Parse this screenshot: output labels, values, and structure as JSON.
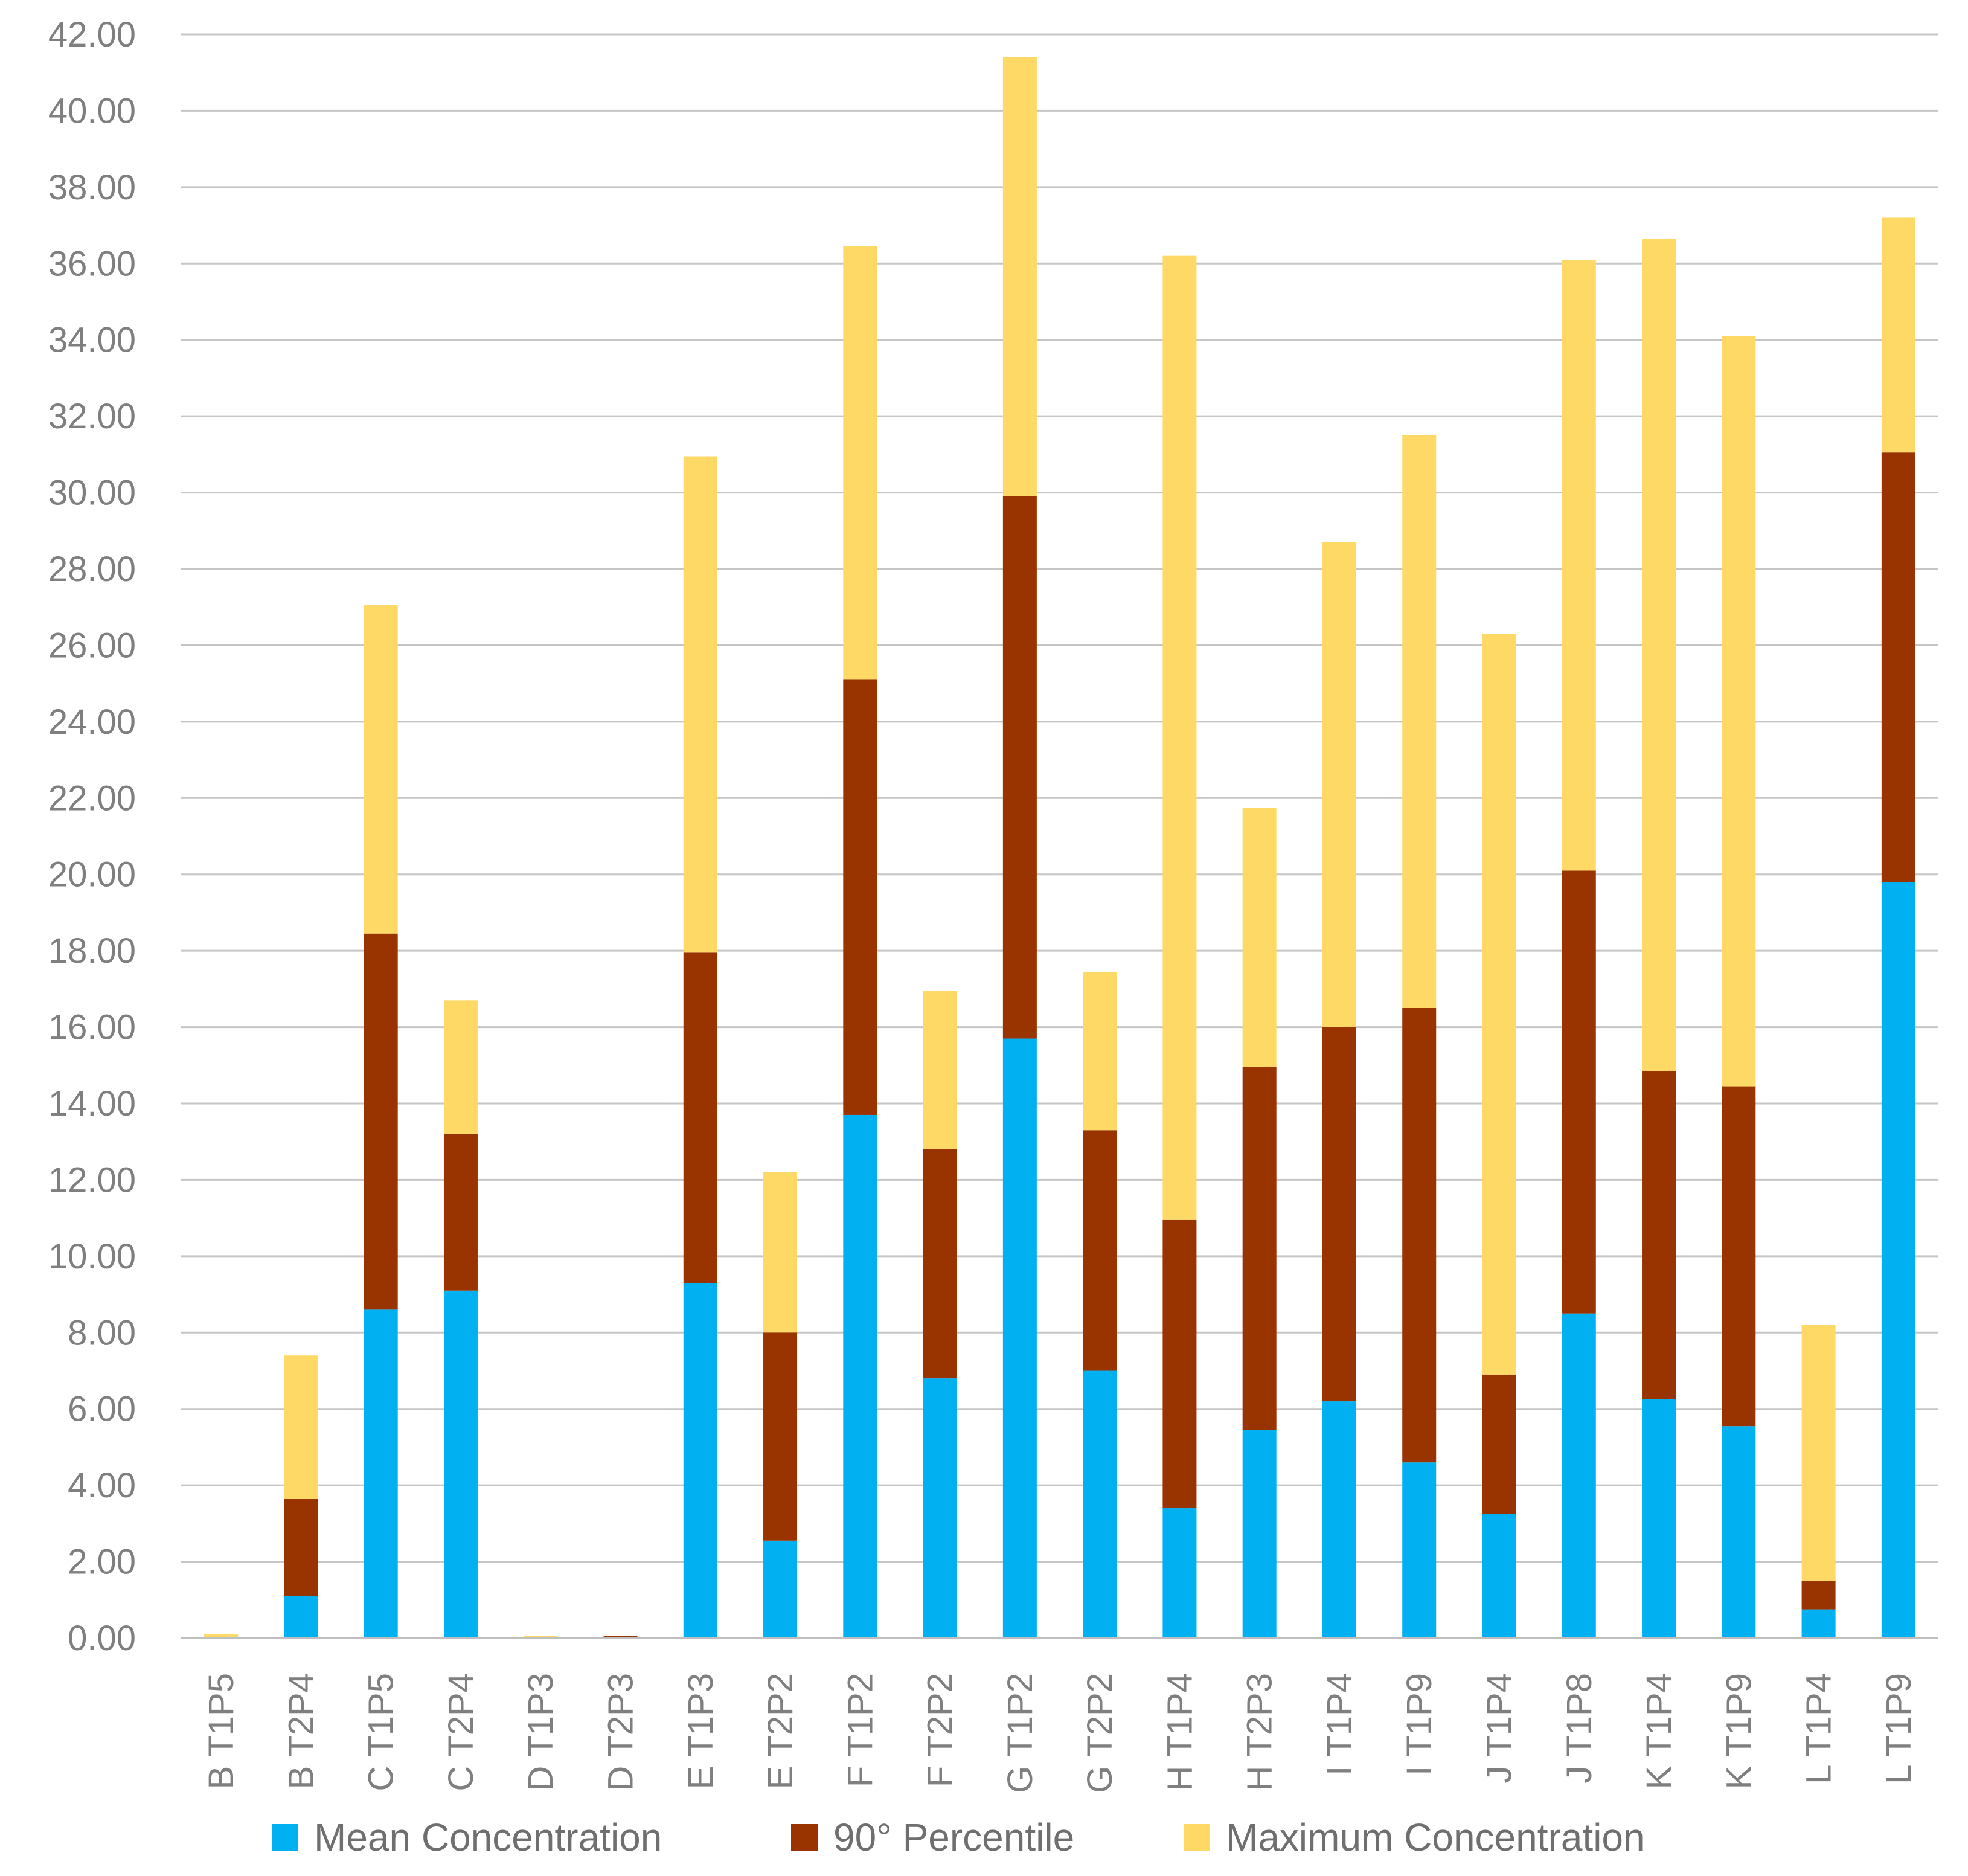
{
  "chart_data": {
    "type": "bar",
    "stacked": true,
    "title": "",
    "xlabel": "",
    "ylabel": "",
    "ylim": [
      0,
      42
    ],
    "y_ticks": [
      "0.00",
      "2.00",
      "4.00",
      "6.00",
      "8.00",
      "10.00",
      "12.00",
      "14.00",
      "16.00",
      "18.00",
      "20.00",
      "22.00",
      "24.00",
      "26.00",
      "28.00",
      "30.00",
      "32.00",
      "34.00",
      "36.00",
      "38.00",
      "40.00",
      "42.00"
    ],
    "grid": true,
    "legend_position": "bottom",
    "categories": [
      "B T1P5",
      "B T2P4",
      "C T1P5",
      "C T2P4",
      "D T1P3",
      "D T2P3",
      "E T1P3",
      "E T2P2",
      "F T1P2",
      "F T2P2",
      "G T1P2",
      "G T2P2",
      "H T1P4",
      "H T2P3",
      "I T1P4",
      "I T1P9",
      "J T1P4",
      "J T1P8",
      "K T1P4",
      "K T1P9",
      "L T1P4",
      "L T1P9"
    ],
    "series": [
      {
        "name": "Mean Concentration",
        "color": "#00b0f0",
        "values": [
          0,
          1.1,
          8.6,
          9.1,
          0,
          0,
          9.3,
          2.55,
          13.7,
          6.8,
          15.7,
          7.0,
          3.4,
          5.45,
          6.2,
          4.6,
          3.25,
          8.5,
          6.25,
          5.55,
          0.75,
          19.8
        ]
      },
      {
        "name": "90° Percentile",
        "color": "#993300",
        "values": [
          0,
          2.55,
          9.85,
          4.1,
          0,
          0.05,
          8.65,
          5.45,
          11.4,
          6.0,
          14.2,
          6.3,
          7.55,
          9.5,
          9.8,
          11.9,
          3.65,
          11.6,
          8.6,
          8.9,
          0.75,
          11.25
        ]
      },
      {
        "name": "Maximum Concentration",
        "color": "#ffd966",
        "values": [
          0.1,
          3.75,
          8.6,
          3.5,
          0.05,
          0,
          13.0,
          4.2,
          11.35,
          4.15,
          11.5,
          4.15,
          25.25,
          6.8,
          12.7,
          15.0,
          19.4,
          16.0,
          21.8,
          19.65,
          6.7,
          6.15
        ]
      }
    ]
  }
}
